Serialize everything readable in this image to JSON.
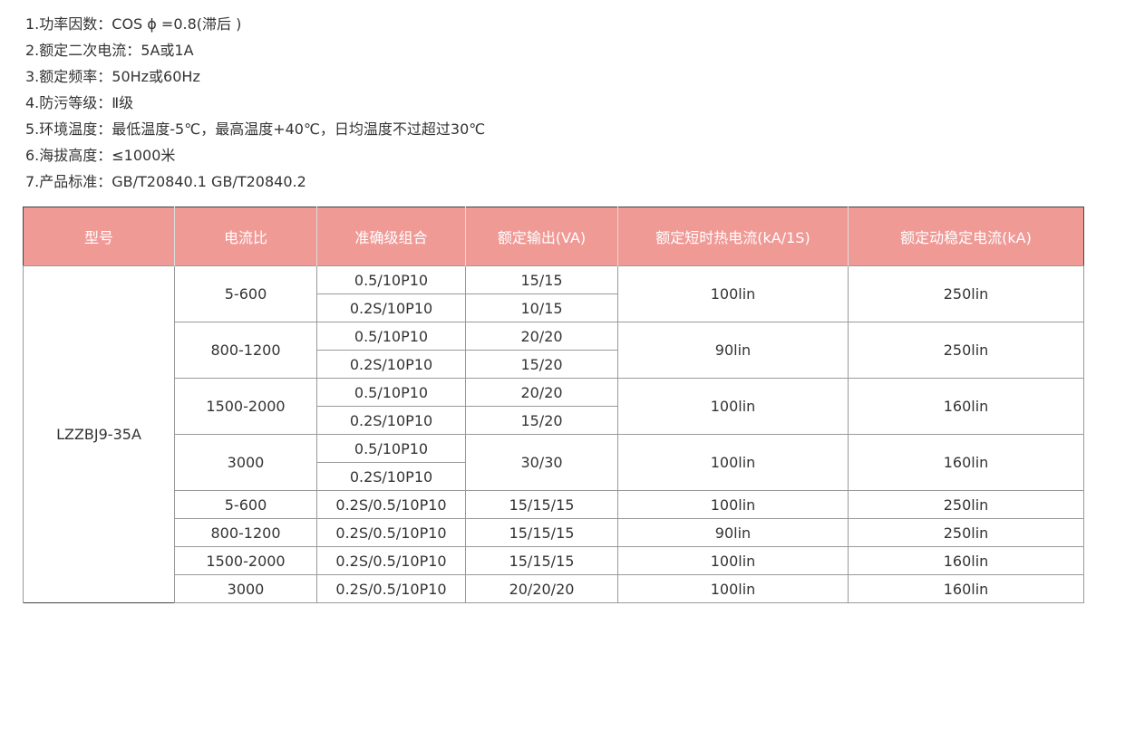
{
  "specs": [
    "1.功率因数：COS ϕ =0.8(滞后 )",
    "2.额定二次电流：5A或1A",
    "3.额定频率：50Hz或60Hz",
    "4.防污等级：Ⅱ级",
    "5.环境温度：最低温度-5℃，最高温度+40℃，日均温度不过超过30℃",
    "6.海拔高度：≤1000米",
    "7.产品标准：GB/T20840.1   GB/T20840.2"
  ],
  "colors": {
    "header_bg": "#f09a96",
    "header_text": "#ffffff",
    "text": "#333333"
  },
  "table": {
    "headers": [
      "型号",
      "电流比",
      "准确级组合",
      "额定输出(VA)",
      "额定短时热电流(kA/1S)",
      "额定动稳定电流(kA)"
    ],
    "model": "LZZBJ9-35A",
    "groups": [
      {
        "ratio": "5-600",
        "accuracy": [
          "0.5/10P10",
          "0.2S/10P10"
        ],
        "output": [
          "15/15",
          "10/15"
        ],
        "thermal": "100lin",
        "dynamic": "250lin"
      },
      {
        "ratio": "800-1200",
        "accuracy": [
          "0.5/10P10",
          "0.2S/10P10"
        ],
        "output": [
          "20/20",
          "15/20"
        ],
        "thermal": "90lin",
        "dynamic": "250lin"
      },
      {
        "ratio": "1500-2000",
        "accuracy": [
          "0.5/10P10",
          "0.2S/10P10"
        ],
        "output": [
          "20/20",
          "15/20"
        ],
        "thermal": "100lin",
        "dynamic": "160lin"
      },
      {
        "ratio": "3000",
        "accuracy": [
          "0.5/10P10",
          "0.2S/10P10"
        ],
        "output": [
          "30/30"
        ],
        "thermal": "100lin",
        "dynamic": "160lin"
      },
      {
        "ratio": "5-600",
        "accuracy": [
          "0.2S/0.5/10P10"
        ],
        "output": [
          "15/15/15"
        ],
        "thermal": "100lin",
        "dynamic": "250lin"
      },
      {
        "ratio": "800-1200",
        "accuracy": [
          "0.2S/0.5/10P10"
        ],
        "output": [
          "15/15/15"
        ],
        "thermal": "90lin",
        "dynamic": "250lin"
      },
      {
        "ratio": "1500-2000",
        "accuracy": [
          "0.2S/0.5/10P10"
        ],
        "output": [
          "15/15/15"
        ],
        "thermal": "100lin",
        "dynamic": "160lin"
      },
      {
        "ratio": "3000",
        "accuracy": [
          "0.2S/0.5/10P10"
        ],
        "output": [
          "20/20/20"
        ],
        "thermal": "100lin",
        "dynamic": "160lin"
      }
    ]
  }
}
